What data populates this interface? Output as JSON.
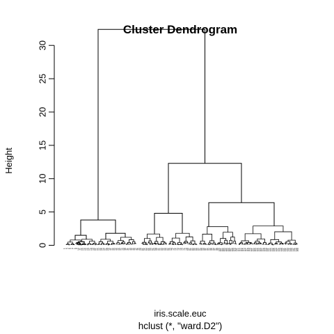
{
  "chart_data": {
    "type": "dendrogram",
    "title": "Cluster Dendrogram",
    "ylabel": "Height",
    "xlabel": "iris.scale.euc",
    "sub": "hclust (*, \"ward.D2\")",
    "ylim": [
      0,
      33
    ],
    "yticks": [
      0,
      5,
      10,
      15,
      20,
      25,
      30
    ],
    "ytick_labels": [
      "0",
      "5",
      "10",
      "15",
      "20",
      "25",
      "30"
    ],
    "n_leaves": 150,
    "merges": [
      {
        "id": "root",
        "height": 32.4,
        "children": [
          "c1",
          "c2"
        ]
      },
      {
        "id": "c1",
        "height": 3.8,
        "children": [
          "c1a",
          "c1b"
        ]
      },
      {
        "id": "c1a",
        "height": 1.5,
        "children": [
          "c1a1",
          "c1a2"
        ]
      },
      {
        "id": "c1a1",
        "height": 0.8,
        "children": []
      },
      {
        "id": "c1a2",
        "height": 0.9,
        "children": []
      },
      {
        "id": "c1b",
        "height": 1.8,
        "children": [
          "c1b1",
          "c1b2"
        ]
      },
      {
        "id": "c1b1",
        "height": 0.9,
        "children": []
      },
      {
        "id": "c1b2",
        "height": 1.2,
        "children": []
      },
      {
        "id": "c2",
        "height": 12.3,
        "children": [
          "c2a",
          "c2b"
        ]
      },
      {
        "id": "c2a",
        "height": 4.8,
        "children": [
          "c2a1",
          "c2a2"
        ]
      },
      {
        "id": "c2a1",
        "height": 1.7,
        "children": []
      },
      {
        "id": "c2a2",
        "height": 1.8,
        "children": []
      },
      {
        "id": "c2b",
        "height": 6.4,
        "children": [
          "c2b1",
          "c2b2"
        ]
      },
      {
        "id": "c2b1",
        "height": 2.8,
        "children": []
      },
      {
        "id": "c2b2",
        "height": 2.9,
        "children": []
      }
    ]
  }
}
